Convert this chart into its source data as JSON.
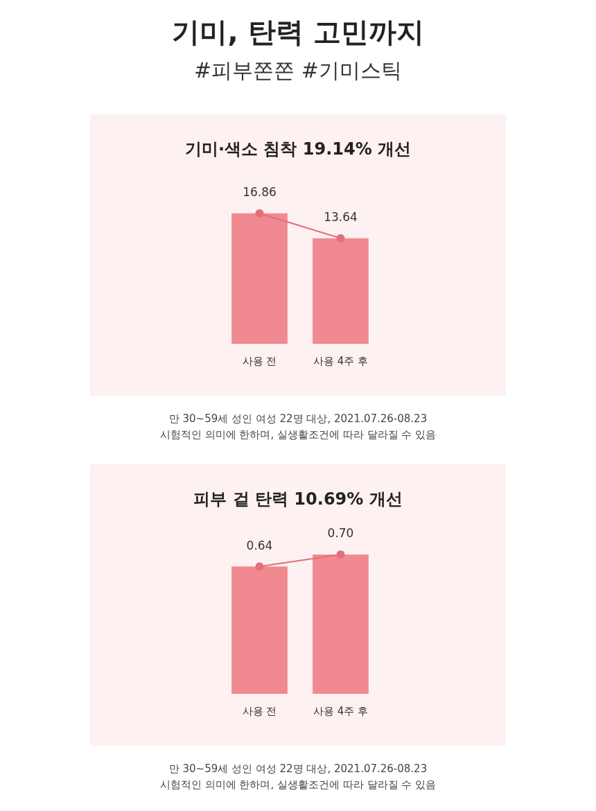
{
  "chart_data": [
    {
      "type": "other",
      "title": "기미, 탄력 고민까지",
      "subtitle": "#피부쫀쫀 #기미스틱"
    },
    {
      "type": "bar",
      "title": "기미·색소 침착 19.14% 개선",
      "categories": [
        "사용 전",
        "사용 4주 후"
      ],
      "series": [
        {
          "type": "bar",
          "color": "#f08a90",
          "values": [
            16.86,
            13.64
          ],
          "value_labels": [
            "16.86",
            "13.64"
          ]
        },
        {
          "type": "line",
          "color": "#e3707a",
          "values": [
            16.86,
            13.64
          ],
          "marker": "circle"
        }
      ],
      "tick_labels": "x",
      "annotations": [
        "만 30~59세 성인 여성 22명 대상, 2021.07.26-08.23",
        "시험적인 의미에 한하며, 실생활조건에 따라 달라질 수 있음"
      ]
    },
    {
      "type": "bar",
      "title": "피부 겉 탄력 10.69% 개선",
      "categories": [
        "사용 전",
        "사용 4주 후"
      ],
      "series": [
        {
          "type": "bar",
          "color": "#f08a90",
          "values": [
            0.64,
            0.7
          ],
          "value_labels": [
            "0.64",
            "0.70"
          ]
        },
        {
          "type": "line",
          "color": "#e3707a",
          "values": [
            0.64,
            0.7
          ],
          "marker": "circle"
        }
      ],
      "tick_labels": "x",
      "annotations": [
        "만 30~59세 성인 여성 22명 대상, 2021.07.26-08.23",
        "시험적인 의미에 한하며, 실생활조건에 따라 달라질 수 있음"
      ]
    }
  ]
}
